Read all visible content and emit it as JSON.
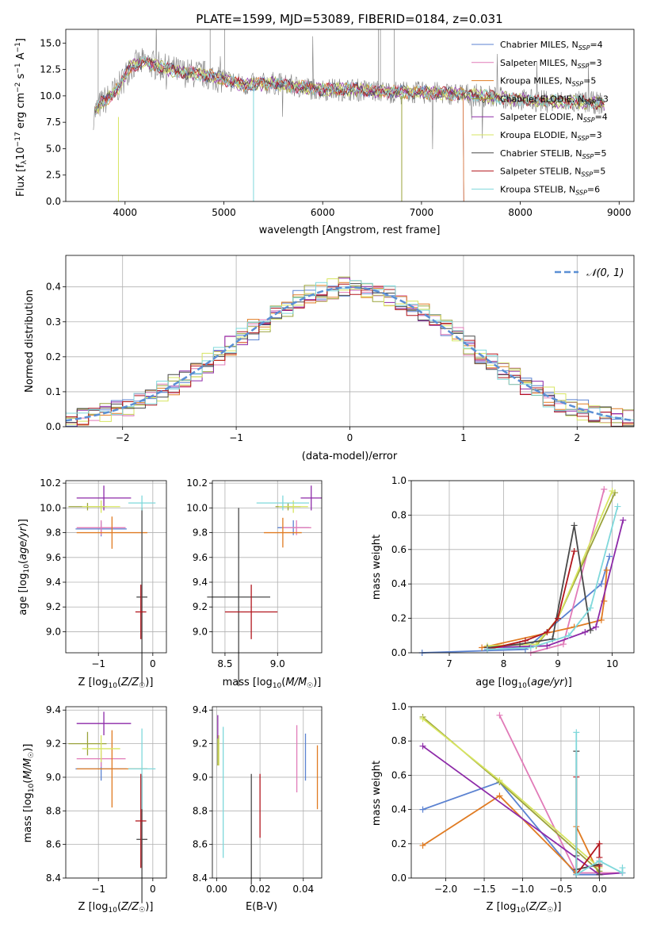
{
  "colors": {
    "Chabrier MILES": "#5b82d1",
    "Salpeter MILES": "#e17bb8",
    "Kroupa MILES": "#e07b22",
    "Chabrier ELODIE": "#9aa33b",
    "Salpeter ELODIE": "#8d2aa8",
    "Kroupa ELODIE": "#d7e560",
    "Chabrier STELIB": "#4a4a4a",
    "Salpeter STELIB": "#b2161e",
    "Kroupa STELIB": "#7fd8db",
    "data": "#808080",
    "gaussian": "#5b8fd4",
    "grid": "#b0b0b0"
  },
  "chart_data": [
    {
      "id": "spectrum",
      "type": "line",
      "title": "PLATE=1599, MJD=53089, FIBERID=0184, z=0.031",
      "xlabel": "wavelength [Angstrom, rest frame]",
      "ylabel": "Flux [f_λ 10^-17 erg cm^-2 s^-1 A^-1]",
      "xlim": [
        3400,
        9150
      ],
      "ylim": [
        0,
        16.3
      ],
      "xticks": [
        4000,
        5000,
        6000,
        7000,
        8000,
        9000
      ],
      "yticks": [
        0.0,
        2.5,
        5.0,
        7.5,
        10.0,
        12.5,
        15.0
      ],
      "ytick_labels": [
        "0.0",
        "2.5",
        "5.0",
        "7.5",
        "10.0",
        "12.5",
        "15.0"
      ],
      "grid": false,
      "legend_position": "top-right",
      "legend": [
        {
          "model": "Chabrier MILES",
          "nssp": "4"
        },
        {
          "model": "Salpeter MILES",
          "nssp": "3"
        },
        {
          "model": "Kroupa MILES",
          "nssp": "5"
        },
        {
          "model": "Chabrier ELODIE",
          "nssp": "3"
        },
        {
          "model": "Salpeter ELODIE",
          "nssp": "4"
        },
        {
          "model": "Kroupa ELODIE",
          "nssp": "3"
        },
        {
          "model": "Chabrier STELIB",
          "nssp": "5"
        },
        {
          "model": "Salpeter STELIB",
          "nssp": "5"
        },
        {
          "model": "Kroupa STELIB",
          "nssp": "6"
        }
      ],
      "continuum": [
        [
          3680,
          8.2
        ],
        [
          3750,
          9.2
        ],
        [
          3850,
          10.0
        ],
        [
          3950,
          11.0
        ],
        [
          4050,
          12.8
        ],
        [
          4200,
          13.2
        ],
        [
          4400,
          12.6
        ],
        [
          4600,
          12.2
        ],
        [
          4800,
          12.0
        ],
        [
          5000,
          11.6
        ],
        [
          5200,
          11.0
        ],
        [
          5500,
          11.2
        ],
        [
          5800,
          10.8
        ],
        [
          6000,
          10.6
        ],
        [
          6300,
          10.6
        ],
        [
          6600,
          10.4
        ],
        [
          7000,
          10.3
        ],
        [
          7400,
          10.2
        ],
        [
          7800,
          9.8
        ],
        [
          8200,
          9.5
        ],
        [
          8600,
          9.4
        ],
        [
          8850,
          9.3
        ]
      ],
      "model_cutoffs": {
        "Kroupa MILES": 7420,
        "Salpeter MILES": 7420,
        "Chabrier MILES": 7420
      }
    },
    {
      "id": "residuals",
      "type": "line",
      "xlabel": "(data-model)/error",
      "ylabel": "Normed distribution",
      "xlim": [
        -2.5,
        2.5
      ],
      "ylim": [
        0,
        0.49
      ],
      "xticks": [
        -2,
        -1,
        0,
        1,
        2
      ],
      "yticks": [
        0.0,
        0.1,
        0.2,
        0.3,
        0.4
      ],
      "grid": true,
      "legend": [
        {
          "label": "𝒩(0, 1)",
          "position": "top-right"
        }
      ],
      "bin_width": 0.1
    },
    {
      "id": "age_vs_Z",
      "type": "scatter",
      "xlabel": "Z [log10(Z/Z☉)]",
      "ylabel": "age [log10(age/yr)]",
      "xlim": [
        -1.6,
        0.25
      ],
      "ylim": [
        8.83,
        10.22
      ],
      "xticks": [
        -1,
        0
      ],
      "yticks": [
        9.0,
        9.2,
        9.4,
        9.6,
        9.8,
        10.0,
        10.2
      ],
      "grid": true,
      "points": [
        {
          "model": "Chabrier MILES",
          "x": -0.95,
          "xerr": 0.47,
          "y": 9.83,
          "yerr": 0.06
        },
        {
          "model": "Salpeter MILES",
          "x": -0.95,
          "xerr": 0.45,
          "y": 9.84,
          "yerr": 0.06
        },
        {
          "model": "Kroupa MILES",
          "x": -0.75,
          "xerr": 0.65,
          "y": 9.8,
          "yerr": 0.13
        },
        {
          "model": "Chabrier ELODIE",
          "x": -1.2,
          "xerr": 0.35,
          "y": 10.01,
          "yerr": 0.03
        },
        {
          "model": "Salpeter ELODIE",
          "x": -0.9,
          "xerr": 0.5,
          "y": 10.08,
          "yerr": 0.1
        },
        {
          "model": "Kroupa ELODIE",
          "x": -0.95,
          "xerr": 0.35,
          "y": 10.01,
          "yerr": 0.05
        },
        {
          "model": "Chabrier STELIB",
          "x": -0.2,
          "xerr": 0.1,
          "y": 9.28,
          "yerr": 0.72
        },
        {
          "model": "Salpeter STELIB",
          "x": -0.22,
          "xerr": 0.1,
          "y": 9.16,
          "yerr": 0.22
        },
        {
          "model": "Kroupa STELIB",
          "x": -0.2,
          "xerr": 0.25,
          "y": 10.04,
          "yerr": 0.06
        }
      ]
    },
    {
      "id": "age_vs_mass",
      "type": "scatter",
      "xlabel": "mass [log10(M/M☉)]",
      "xlim": [
        8.38,
        9.42
      ],
      "ylim": [
        8.83,
        10.22
      ],
      "xticks": [
        8.5,
        9.0
      ],
      "yticks": [
        9.0,
        9.2,
        9.4,
        9.6,
        9.8,
        10.0,
        10.2
      ],
      "grid": true,
      "points": [
        {
          "model": "Chabrier MILES",
          "x": 9.15,
          "xerr": 0.15,
          "y": 9.84,
          "yerr": 0.06
        },
        {
          "model": "Salpeter MILES",
          "x": 9.18,
          "xerr": 0.14,
          "y": 9.84,
          "yerr": 0.06
        },
        {
          "model": "Kroupa MILES",
          "x": 9.05,
          "xerr": 0.18,
          "y": 9.8,
          "yerr": 0.12
        },
        {
          "model": "Chabrier ELODIE",
          "x": 9.1,
          "xerr": 0.12,
          "y": 10.01,
          "yerr": 0.03
        },
        {
          "model": "Salpeter ELODIE",
          "x": 9.32,
          "xerr": 0.1,
          "y": 10.08,
          "yerr": 0.1
        },
        {
          "model": "Kroupa ELODIE",
          "x": 9.15,
          "xerr": 0.14,
          "y": 10.01,
          "yerr": 0.05
        },
        {
          "model": "Chabrier STELIB",
          "x": 8.63,
          "xerr": 0.3,
          "y": 9.28,
          "yerr": 0.72
        },
        {
          "model": "Salpeter STELIB",
          "x": 8.75,
          "xerr": 0.25,
          "y": 9.16,
          "yerr": 0.22
        },
        {
          "model": "Kroupa STELIB",
          "x": 9.05,
          "xerr": 0.25,
          "y": 10.04,
          "yerr": 0.06
        }
      ]
    },
    {
      "id": "massweight_vs_age",
      "type": "line",
      "xlabel": "age [log10(age/yr)]",
      "ylabel": "mass weight",
      "xlim": [
        6.3,
        10.4
      ],
      "ylim": [
        0,
        1.0
      ],
      "xticks": [
        7,
        8,
        9,
        10
      ],
      "yticks": [
        0.0,
        0.2,
        0.4,
        0.6,
        0.8,
        1.0
      ],
      "grid": true,
      "series": [
        {
          "model": "Chabrier MILES",
          "x": [
            6.5,
            8.4,
            9.8,
            9.95
          ],
          "y": [
            0.0,
            0.02,
            0.4,
            0.56
          ]
        },
        {
          "model": "Salpeter MILES",
          "x": [
            8.5,
            9.1,
            9.85
          ],
          "y": [
            0.0,
            0.05,
            0.95
          ]
        },
        {
          "model": "Kroupa MILES",
          "x": [
            7.6,
            9.3,
            9.8,
            9.85,
            9.9
          ],
          "y": [
            0.03,
            0.15,
            0.19,
            0.3,
            0.48
          ]
        },
        {
          "model": "Chabrier ELODIE",
          "x": [
            8.6,
            9.0,
            10.05
          ],
          "y": [
            0.04,
            0.2,
            0.93
          ]
        },
        {
          "model": "Salpeter ELODIE",
          "x": [
            7.7,
            8.8,
            9.5,
            9.7,
            10.2
          ],
          "y": [
            0.03,
            0.04,
            0.12,
            0.15,
            0.77
          ]
        },
        {
          "model": "Kroupa ELODIE",
          "x": [
            7.7,
            8.6,
            9.0,
            10.0
          ],
          "y": [
            0.04,
            0.05,
            0.2,
            0.94
          ]
        },
        {
          "model": "Chabrier STELIB",
          "x": [
            7.7,
            8.3,
            8.9,
            9.3,
            9.6
          ],
          "y": [
            0.03,
            0.05,
            0.08,
            0.74,
            0.13
          ]
        },
        {
          "model": "Salpeter STELIB",
          "x": [
            7.7,
            8.4,
            8.8,
            9.0,
            9.3
          ],
          "y": [
            0.02,
            0.07,
            0.12,
            0.2,
            0.59
          ]
        },
        {
          "model": "Kroupa STELIB",
          "x": [
            7.7,
            8.5,
            9.2,
            9.6,
            10.1
          ],
          "y": [
            0.02,
            0.03,
            0.1,
            0.26,
            0.85
          ]
        }
      ]
    },
    {
      "id": "mass_vs_Z",
      "type": "scatter",
      "xlabel": "Z [log10(Z/Z☉)]",
      "ylabel": "mass [log10(M/M☉)]",
      "xlim": [
        -1.6,
        0.25
      ],
      "ylim": [
        8.4,
        9.42
      ],
      "xticks": [
        -1,
        0
      ],
      "yticks": [
        8.4,
        8.6,
        8.8,
        9.0,
        9.2,
        9.4
      ],
      "grid": true,
      "points": [
        {
          "model": "Chabrier MILES",
          "x": -0.95,
          "xerr": 0.47,
          "y": 9.05,
          "yerr": 0.07
        },
        {
          "model": "Salpeter MILES",
          "x": -0.95,
          "xerr": 0.45,
          "y": 9.11,
          "yerr": 0.05
        },
        {
          "model": "Kroupa MILES",
          "x": -0.75,
          "xerr": 0.65,
          "y": 9.05,
          "yerr": 0.23
        },
        {
          "model": "Chabrier ELODIE",
          "x": -1.2,
          "xerr": 0.35,
          "y": 9.2,
          "yerr": 0.07
        },
        {
          "model": "Salpeter ELODIE",
          "x": -0.9,
          "xerr": 0.5,
          "y": 9.32,
          "yerr": 0.07
        },
        {
          "model": "Kroupa ELODIE",
          "x": -0.95,
          "xerr": 0.35,
          "y": 9.17,
          "yerr": 0.08
        },
        {
          "model": "Chabrier STELIB",
          "x": -0.2,
          "xerr": 0.1,
          "y": 8.63,
          "yerr": 0.38
        },
        {
          "model": "Salpeter STELIB",
          "x": -0.22,
          "xerr": 0.1,
          "y": 8.74,
          "yerr": 0.28
        },
        {
          "model": "Kroupa STELIB",
          "x": -0.2,
          "xerr": 0.25,
          "y": 9.05,
          "yerr": 0.24
        }
      ]
    },
    {
      "id": "mass_vs_ebv",
      "type": "scatter",
      "xlabel": "E(B-V)",
      "xlim": [
        -0.002,
        0.0485
      ],
      "ylim": [
        8.4,
        9.42
      ],
      "xticks": [
        0.0,
        0.02,
        0.04
      ],
      "xtick_labels": [
        "0.00",
        "0.02",
        "0.04"
      ],
      "yticks": [
        8.4,
        8.6,
        8.8,
        9.0,
        9.2,
        9.4
      ],
      "grid": true,
      "points": [
        {
          "model": "Chabrier MILES",
          "x": 0.041,
          "y": 9.12,
          "yerr": 0.14
        },
        {
          "model": "Salpeter MILES",
          "x": 0.037,
          "y": 9.11,
          "yerr": 0.2
        },
        {
          "model": "Kroupa MILES",
          "x": 0.0465,
          "y": 9.0,
          "yerr": 0.19
        },
        {
          "model": "Chabrier ELODIE",
          "x": 0.0005,
          "y": 9.16,
          "yerr": 0.09
        },
        {
          "model": "Salpeter ELODIE",
          "x": 0.0005,
          "y": 9.3,
          "yerr": 0.07
        },
        {
          "model": "Kroupa ELODIE",
          "x": 0.001,
          "y": 9.16,
          "yerr": 0.09
        },
        {
          "model": "Chabrier STELIB",
          "x": 0.016,
          "y": 8.69,
          "yerr": 0.33
        },
        {
          "model": "Salpeter STELIB",
          "x": 0.02,
          "y": 8.83,
          "yerr": 0.19
        },
        {
          "model": "Kroupa STELIB",
          "x": 0.003,
          "y": 8.91,
          "yerr": 0.39
        }
      ]
    },
    {
      "id": "massweight_vs_Z",
      "type": "line",
      "xlabel": "Z [log10(Z/Z☉)]",
      "ylabel": "mass weight",
      "xlim": [
        -2.45,
        0.45
      ],
      "ylim": [
        0,
        1.0
      ],
      "xticks": [
        -2.0,
        -1.5,
        -1.0,
        -0.5,
        0.0
      ],
      "xtick_labels": [
        "−2.0",
        "−1.5",
        "−1.0",
        "−0.5",
        "0.0"
      ],
      "yticks": [
        0.0,
        0.2,
        0.4,
        0.6,
        0.8,
        1.0
      ],
      "grid": true,
      "series": [
        {
          "model": "Chabrier MILES",
          "x": [
            -2.3,
            -1.3,
            -0.3,
            0.0
          ],
          "y": [
            0.4,
            0.56,
            0.02,
            0.02
          ]
        },
        {
          "model": "Salpeter MILES",
          "x": [
            -1.3,
            -0.3,
            0.0,
            0.3
          ],
          "y": [
            0.95,
            0.03,
            0.03,
            0.03
          ]
        },
        {
          "model": "Kroupa MILES",
          "x": [
            -2.3,
            -1.3,
            -0.3,
            -0.3,
            0.0
          ],
          "y": [
            0.19,
            0.48,
            0.03,
            0.3,
            0.02
          ]
        },
        {
          "model": "Chabrier ELODIE",
          "x": [
            -2.3,
            -1.3,
            0.0
          ],
          "y": [
            0.94,
            0.56,
            0.04
          ]
        },
        {
          "model": "Salpeter ELODIE",
          "x": [
            -2.3,
            0.0,
            0.3
          ],
          "y": [
            0.77,
            0.02,
            0.03
          ]
        },
        {
          "model": "Kroupa ELODIE",
          "x": [
            -2.3,
            -1.3,
            0.0
          ],
          "y": [
            0.93,
            0.57,
            0.06
          ]
        },
        {
          "model": "Chabrier STELIB",
          "x": [
            -0.3,
            -0.3,
            -0.3,
            0.0,
            0.0
          ],
          "y": [
            0.74,
            0.13,
            0.05,
            0.08,
            0.02
          ]
        },
        {
          "model": "Salpeter STELIB",
          "x": [
            -0.3,
            -0.3,
            0.0,
            0.0,
            0.0
          ],
          "y": [
            0.59,
            0.02,
            0.2,
            0.12,
            0.07
          ]
        },
        {
          "model": "Kroupa STELIB",
          "x": [
            -0.3,
            -0.3,
            0.0,
            0.3,
            0.3
          ],
          "y": [
            0.85,
            0.02,
            0.1,
            0.03,
            0.06
          ]
        }
      ]
    }
  ]
}
